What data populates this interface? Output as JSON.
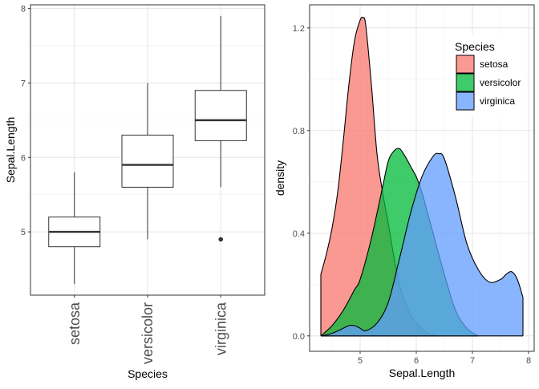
{
  "chart_data": [
    {
      "type": "box",
      "title": "",
      "xlabel": "Species",
      "ylabel": "Sepal.Length",
      "categories": [
        "setosa",
        "versicolor",
        "virginica"
      ],
      "ylim": [
        4.15,
        8.05
      ],
      "yticks": [
        5,
        6,
        7,
        8
      ],
      "grid": true,
      "boxes": [
        {
          "category": "setosa",
          "min": 4.3,
          "q1": 4.8,
          "median": 5.0,
          "q3": 5.2,
          "max": 5.8,
          "outliers": []
        },
        {
          "category": "versicolor",
          "min": 4.9,
          "q1": 5.6,
          "median": 5.9,
          "q3": 6.3,
          "max": 7.0,
          "outliers": []
        },
        {
          "category": "virginica",
          "min": 5.6,
          "q1": 6.225,
          "median": 6.5,
          "q3": 6.9,
          "max": 7.9,
          "outliers": [
            4.9
          ]
        }
      ]
    },
    {
      "type": "area",
      "title": "",
      "xlabel": "Sepal.Length",
      "ylabel": "density",
      "xlim": [
        4.1,
        8.1
      ],
      "ylim": [
        -0.06,
        1.29
      ],
      "xticks": [
        5,
        6,
        7,
        8
      ],
      "yticks": [
        0.0,
        0.4,
        0.8,
        1.2
      ],
      "ytick_labels": [
        "0.0",
        "0.4",
        "0.8",
        "1.2"
      ],
      "grid": true,
      "legend": {
        "title": "Species",
        "position": "top-right"
      },
      "series": [
        {
          "name": "setosa",
          "color": "#F8766D",
          "x": [
            4.3,
            4.4,
            4.5,
            4.6,
            4.7,
            4.8,
            4.9,
            5.0,
            5.05,
            5.1,
            5.2,
            5.3,
            5.4,
            5.5,
            5.6,
            5.7,
            5.8,
            5.9,
            6.0,
            6.2,
            6.4
          ],
          "y": [
            0.24,
            0.32,
            0.42,
            0.56,
            0.76,
            0.98,
            1.15,
            1.23,
            1.24,
            1.21,
            0.98,
            0.71,
            0.56,
            0.44,
            0.31,
            0.2,
            0.13,
            0.08,
            0.05,
            0.01,
            0.0
          ]
        },
        {
          "name": "versicolor",
          "color": "#00BA38",
          "x": [
            4.3,
            4.5,
            4.7,
            4.9,
            5.0,
            5.2,
            5.4,
            5.5,
            5.6,
            5.7,
            5.8,
            5.9,
            6.0,
            6.1,
            6.2,
            6.3,
            6.5,
            6.7,
            6.9,
            7.1
          ],
          "y": [
            0.0,
            0.04,
            0.1,
            0.18,
            0.22,
            0.38,
            0.58,
            0.68,
            0.72,
            0.73,
            0.7,
            0.66,
            0.62,
            0.56,
            0.48,
            0.4,
            0.24,
            0.1,
            0.03,
            0.0
          ]
        },
        {
          "name": "virginica",
          "color": "#619CFF",
          "x": [
            4.3,
            4.5,
            4.7,
            4.8,
            4.9,
            5.0,
            5.1,
            5.3,
            5.5,
            5.7,
            5.9,
            6.1,
            6.3,
            6.4,
            6.5,
            6.7,
            6.9,
            7.1,
            7.3,
            7.5,
            7.6,
            7.7,
            7.8,
            7.9
          ],
          "y": [
            0.0,
            0.01,
            0.03,
            0.04,
            0.04,
            0.03,
            0.02,
            0.05,
            0.13,
            0.3,
            0.48,
            0.62,
            0.7,
            0.71,
            0.69,
            0.54,
            0.36,
            0.26,
            0.21,
            0.22,
            0.24,
            0.25,
            0.22,
            0.15
          ]
        }
      ]
    }
  ]
}
